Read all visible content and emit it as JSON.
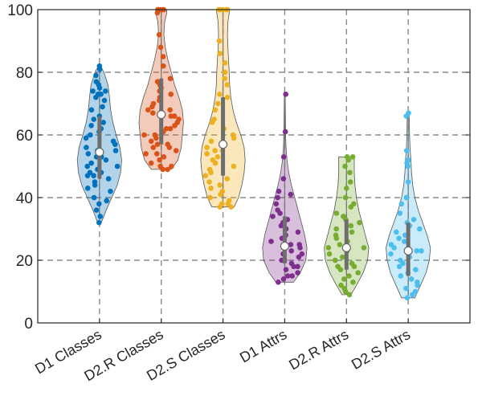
{
  "chart_data": {
    "type": "violin",
    "title": "",
    "xlabel": "",
    "ylabel": "",
    "ylim": [
      0,
      100
    ],
    "yticks": [
      0,
      20,
      40,
      60,
      80,
      100
    ],
    "grid": true,
    "categories": [
      "D1 Classes",
      "D2.R Classes",
      "D2.S Classes",
      "D1 Attrs",
      "D2.R Attrs",
      "D2.S Attrs"
    ],
    "series": [
      {
        "color": "#0072BD",
        "median": 54.5,
        "q1": 46,
        "q3": 66,
        "min": 32,
        "max": 82,
        "violin": [
          [
            32,
            0.08
          ],
          [
            36,
            0.3
          ],
          [
            40,
            0.55
          ],
          [
            44,
            0.8
          ],
          [
            48,
            0.95
          ],
          [
            52,
            1.0
          ],
          [
            56,
            0.92
          ],
          [
            60,
            0.75
          ],
          [
            64,
            0.6
          ],
          [
            68,
            0.5
          ],
          [
            72,
            0.45
          ],
          [
            76,
            0.38
          ],
          [
            80,
            0.2
          ],
          [
            82,
            0.05
          ]
        ],
        "points": [
          82,
          81,
          79,
          77,
          76,
          75,
          74,
          74,
          73,
          73,
          72,
          71,
          69,
          68,
          66,
          65,
          64,
          63,
          62,
          61,
          60,
          59,
          58,
          57,
          56,
          55,
          55,
          54,
          53,
          53,
          52,
          51,
          50,
          50,
          49,
          48,
          48,
          47,
          47,
          46,
          45,
          44,
          43,
          42,
          40,
          39,
          38,
          36,
          34,
          32
        ]
      },
      {
        "color": "#D95319",
        "median": 66.5,
        "q1": 57,
        "q3": 78,
        "min": 49,
        "max": 100,
        "violin": [
          [
            49,
            0.45
          ],
          [
            52,
            0.75
          ],
          [
            56,
            0.9
          ],
          [
            60,
            0.95
          ],
          [
            64,
            1.0
          ],
          [
            68,
            0.95
          ],
          [
            72,
            0.8
          ],
          [
            76,
            0.6
          ],
          [
            80,
            0.45
          ],
          [
            84,
            0.3
          ],
          [
            88,
            0.18
          ],
          [
            92,
            0.12
          ],
          [
            96,
            0.15
          ],
          [
            99,
            0.25
          ],
          [
            100,
            0.25
          ]
        ],
        "points": [
          100,
          100,
          100,
          100,
          100,
          99,
          92,
          88,
          85,
          82,
          78,
          77,
          76,
          75,
          74,
          73,
          72,
          71,
          70,
          69,
          68,
          68,
          67,
          66,
          66,
          65,
          64,
          63,
          62,
          62,
          61,
          60,
          60,
          59,
          58,
          57,
          57,
          56,
          56,
          55,
          54,
          54,
          53,
          52,
          51,
          50,
          50,
          49,
          49
        ]
      },
      {
        "color": "#EDB120",
        "median": 57,
        "q1": 47,
        "q3": 72,
        "min": 37,
        "max": 100,
        "violin": [
          [
            37,
            0.5
          ],
          [
            40,
            0.7
          ],
          [
            44,
            0.85
          ],
          [
            48,
            0.95
          ],
          [
            52,
            1.0
          ],
          [
            56,
            0.95
          ],
          [
            60,
            0.8
          ],
          [
            64,
            0.6
          ],
          [
            68,
            0.45
          ],
          [
            72,
            0.35
          ],
          [
            76,
            0.3
          ],
          [
            80,
            0.28
          ],
          [
            84,
            0.25
          ],
          [
            88,
            0.22
          ],
          [
            92,
            0.2
          ],
          [
            96,
            0.22
          ],
          [
            100,
            0.3
          ]
        ],
        "points": [
          100,
          100,
          100,
          100,
          100,
          90,
          86,
          83,
          80,
          78,
          76,
          73,
          72,
          70,
          68,
          65,
          64,
          62,
          60,
          59,
          58,
          57,
          56,
          55,
          55,
          54,
          53,
          52,
          51,
          50,
          49,
          48,
          47,
          46,
          45,
          44,
          43,
          42,
          41,
          40,
          39,
          38,
          38,
          37,
          37
        ]
      },
      {
        "color": "#7E2F8E",
        "median": 24.5,
        "q1": 19,
        "q3": 34,
        "min": 13,
        "max": 73,
        "violin": [
          [
            13,
            0.4
          ],
          [
            16,
            0.7
          ],
          [
            20,
            0.95
          ],
          [
            24,
            1.0
          ],
          [
            28,
            0.9
          ],
          [
            32,
            0.75
          ],
          [
            36,
            0.6
          ],
          [
            40,
            0.45
          ],
          [
            44,
            0.3
          ],
          [
            48,
            0.18
          ],
          [
            52,
            0.1
          ],
          [
            56,
            0.06
          ],
          [
            60,
            0.04
          ],
          [
            66,
            0.03
          ],
          [
            73,
            0.02
          ]
        ],
        "points": [
          73,
          61,
          53,
          46,
          42,
          41,
          40,
          38,
          36,
          35,
          34,
          33,
          32,
          31,
          30,
          29,
          28,
          27,
          26,
          25,
          25,
          24,
          24,
          23,
          22,
          22,
          21,
          20,
          20,
          19,
          18,
          18,
          17,
          16,
          15,
          15,
          14,
          13
        ]
      },
      {
        "color": "#77AC30",
        "median": 24,
        "q1": 17,
        "q3": 33,
        "min": 9,
        "max": 53,
        "violin": [
          [
            9,
            0.2
          ],
          [
            12,
            0.45
          ],
          [
            16,
            0.75
          ],
          [
            20,
            0.95
          ],
          [
            24,
            1.0
          ],
          [
            28,
            0.85
          ],
          [
            32,
            0.7
          ],
          [
            36,
            0.55
          ],
          [
            40,
            0.45
          ],
          [
            44,
            0.38
          ],
          [
            48,
            0.35
          ],
          [
            52,
            0.35
          ],
          [
            53,
            0.35
          ]
        ],
        "points": [
          53,
          53,
          52,
          50,
          48,
          45,
          43,
          40,
          38,
          37,
          35,
          34,
          33,
          32,
          31,
          30,
          29,
          28,
          27,
          26,
          25,
          24,
          24,
          23,
          22,
          21,
          20,
          19,
          18,
          18,
          17,
          16,
          15,
          14,
          13,
          12,
          11,
          10,
          9
        ]
      },
      {
        "color": "#4DBEEE",
        "median": 23,
        "q1": 15,
        "q3": 32,
        "min": 8,
        "max": 67,
        "violin": [
          [
            8,
            0.3
          ],
          [
            12,
            0.55
          ],
          [
            16,
            0.8
          ],
          [
            20,
            0.95
          ],
          [
            24,
            1.0
          ],
          [
            28,
            0.85
          ],
          [
            32,
            0.65
          ],
          [
            36,
            0.45
          ],
          [
            40,
            0.3
          ],
          [
            44,
            0.2
          ],
          [
            48,
            0.15
          ],
          [
            52,
            0.12
          ],
          [
            56,
            0.08
          ],
          [
            60,
            0.06
          ],
          [
            67,
            0.04
          ]
        ],
        "points": [
          67,
          66,
          55,
          52,
          51,
          50,
          45,
          40,
          38,
          35,
          33,
          32,
          31,
          30,
          29,
          28,
          27,
          26,
          25,
          24,
          23,
          23,
          22,
          21,
          20,
          19,
          18,
          17,
          16,
          15,
          14,
          13,
          12,
          11,
          10,
          9,
          8
        ]
      }
    ]
  }
}
